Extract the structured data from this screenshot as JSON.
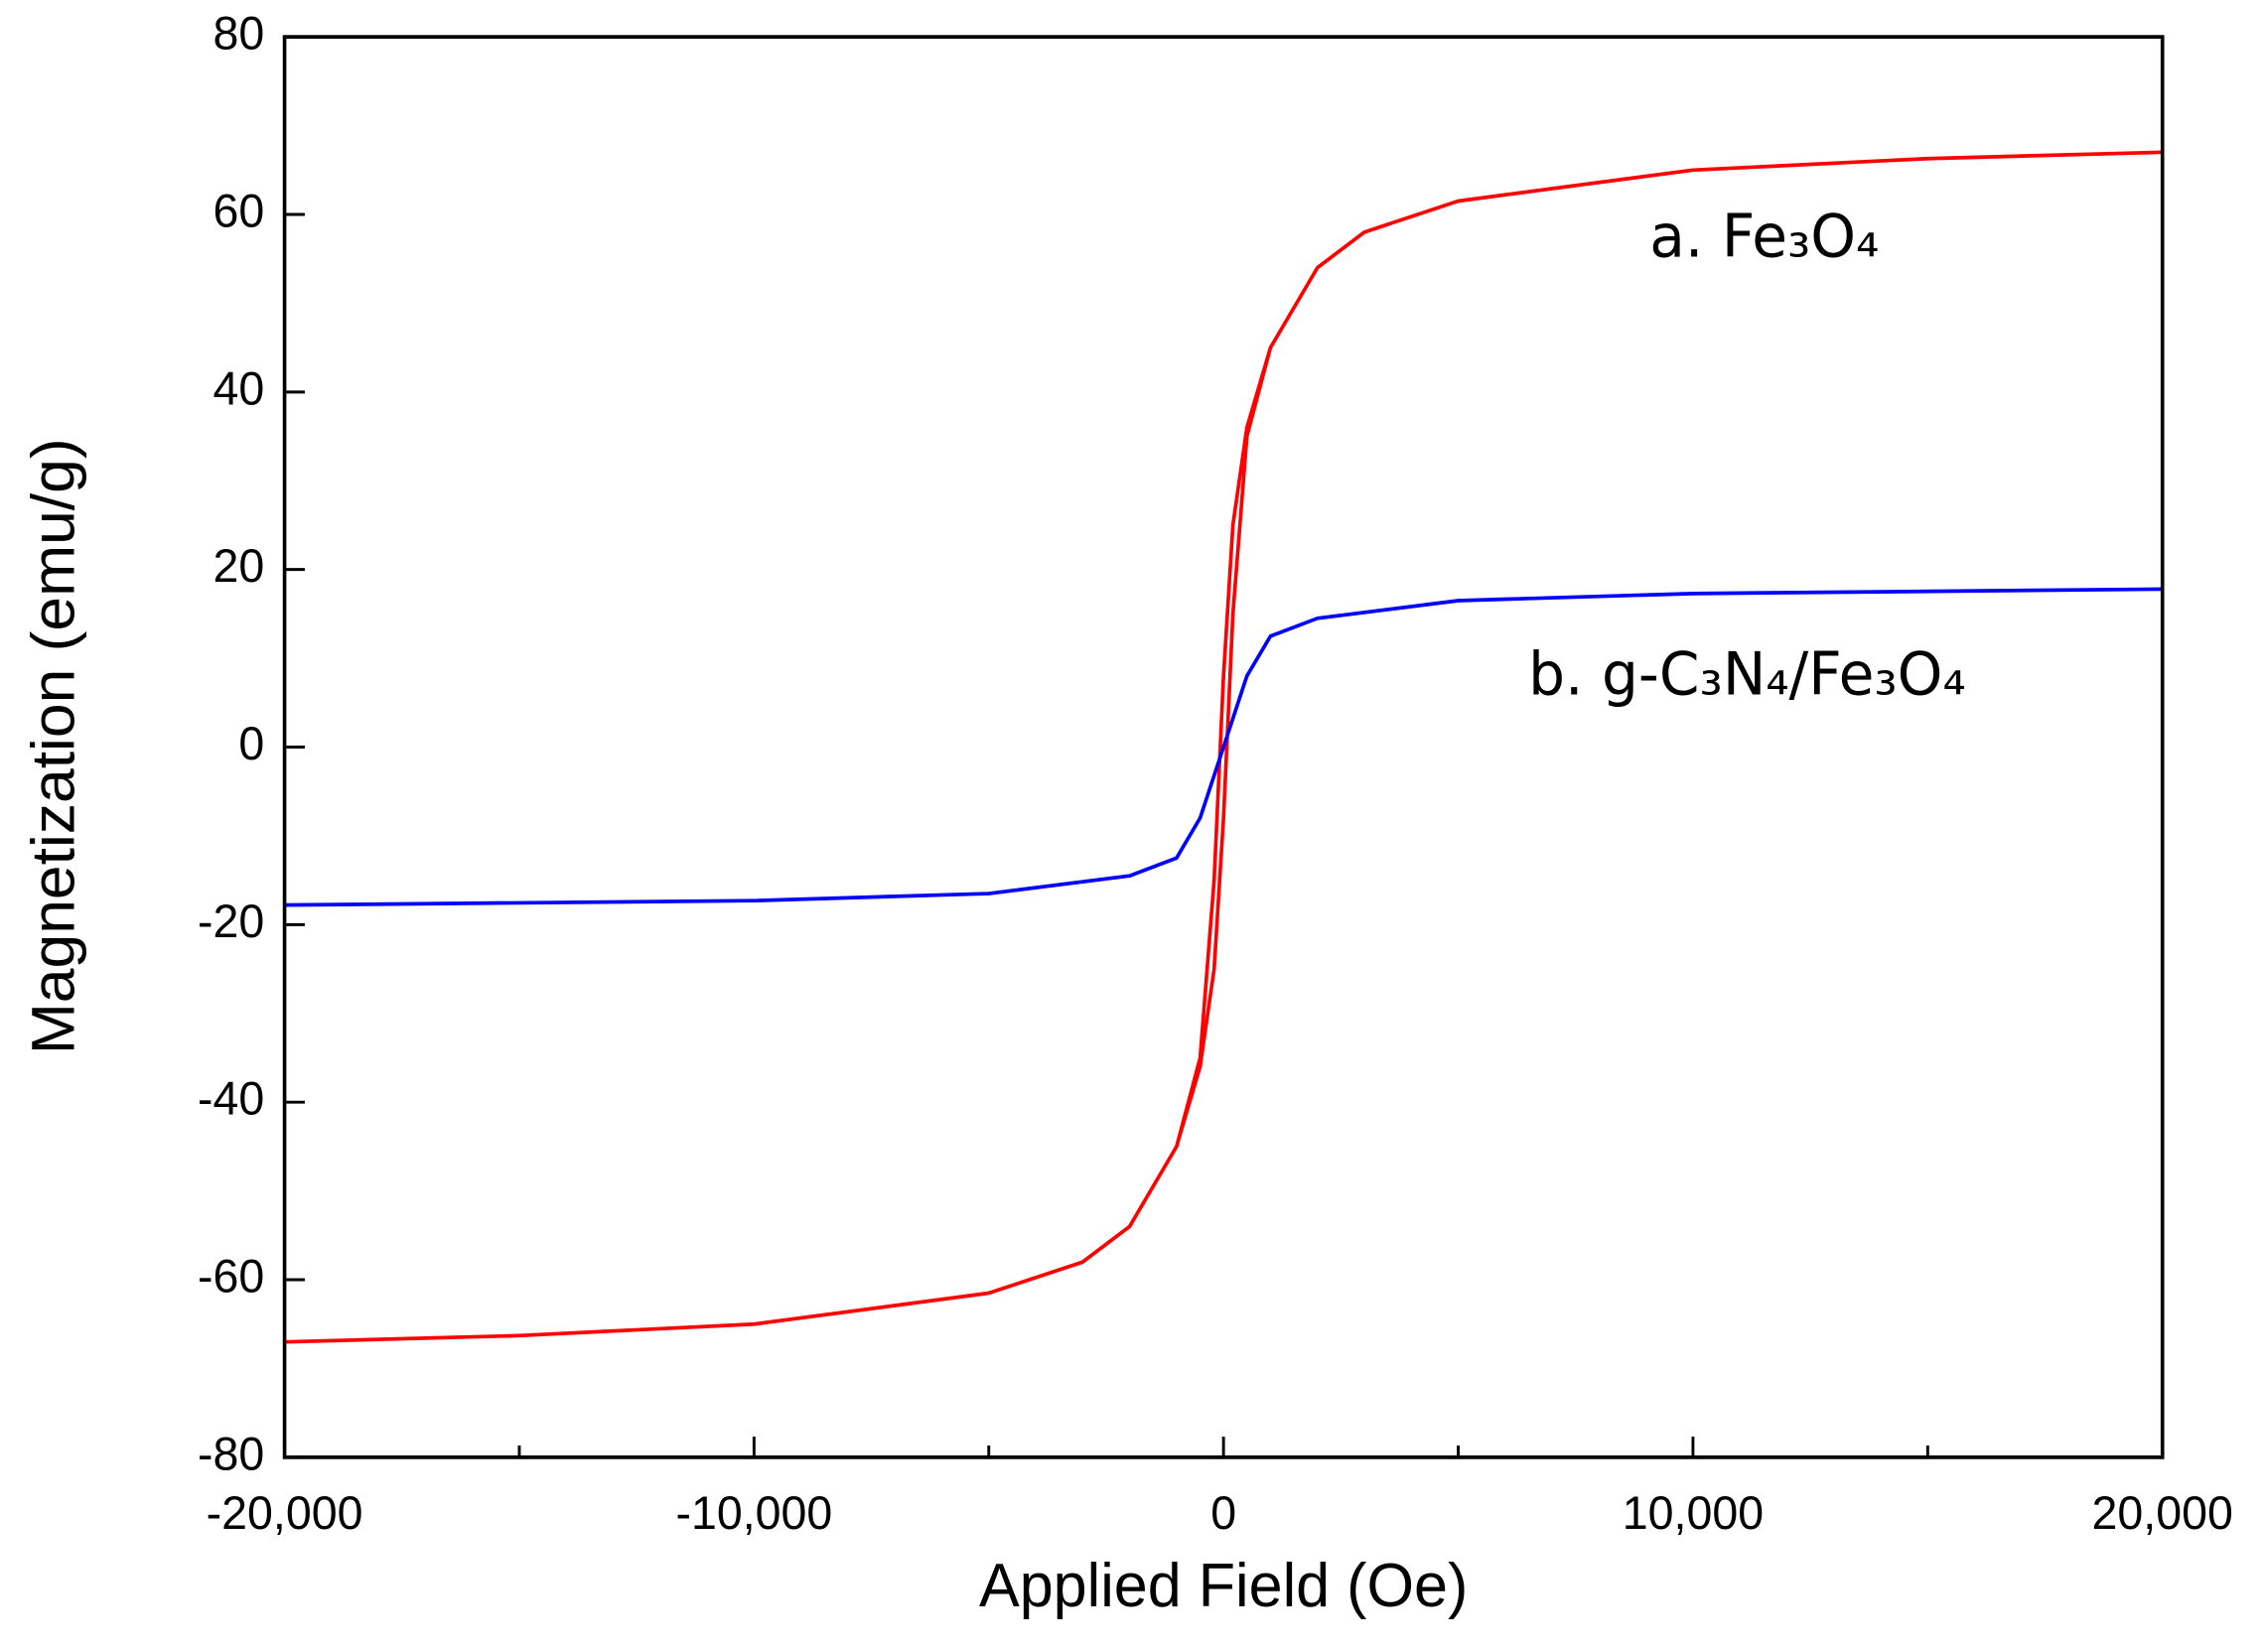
{
  "chart_data": {
    "type": "line",
    "xlabel": "Applied Field (Oe)",
    "ylabel": "Magnetization (emu/g)",
    "xlim": [
      -20000,
      20000
    ],
    "xticks": [
      {
        "value": -20000,
        "label": "-20,000"
      },
      {
        "value": -10000,
        "label": "-10,000"
      },
      0,
      {
        "value": 10000,
        "label": "10,000"
      },
      {
        "value": 20000,
        "label": "20,000"
      }
    ],
    "xminorticks": [
      -15000,
      -5000,
      5000,
      15000
    ],
    "ylim": [
      -80,
      80
    ],
    "yticks": [
      -80,
      -60,
      -40,
      -20,
      0,
      20,
      40,
      60,
      80
    ],
    "series": [
      {
        "name": "a. Fe₃O₄",
        "color": "#ff0000",
        "x": [
          -20000,
          -15000,
          -10000,
          -5000,
          -3000,
          -2000,
          -1000,
          -500,
          -200,
          0,
          200,
          500,
          1000,
          2000,
          3000,
          5000,
          10000,
          15000,
          20000,
          15000,
          10000,
          5000,
          3000,
          2000,
          1000,
          500,
          200,
          0,
          -200,
          -500,
          -1000,
          -2000,
          -3000,
          -5000,
          -10000,
          -15000,
          -20000
        ],
        "values": [
          -67,
          -66.3,
          -65,
          -61.5,
          -58,
          -54,
          -45,
          -36,
          -25,
          -8,
          15,
          35,
          45,
          54,
          58,
          61.5,
          65,
          66.3,
          67,
          66.3,
          65,
          61.5,
          58,
          54,
          45,
          36,
          25,
          8,
          -15,
          -35,
          -45,
          -54,
          -58,
          -61.5,
          -65,
          -66.3,
          -67
        ]
      },
      {
        "name": "b. g-C₃N₄/Fe₃O₄",
        "color": "#0000ff",
        "x": [
          -20000,
          -10000,
          -5000,
          -2000,
          -1000,
          -500,
          0,
          500,
          1000,
          2000,
          5000,
          10000,
          20000
        ],
        "values": [
          -17.8,
          -17.3,
          -16.5,
          -14.5,
          -12.5,
          -8,
          0,
          8,
          12.5,
          14.5,
          16.5,
          17.3,
          17.8
        ]
      }
    ]
  }
}
